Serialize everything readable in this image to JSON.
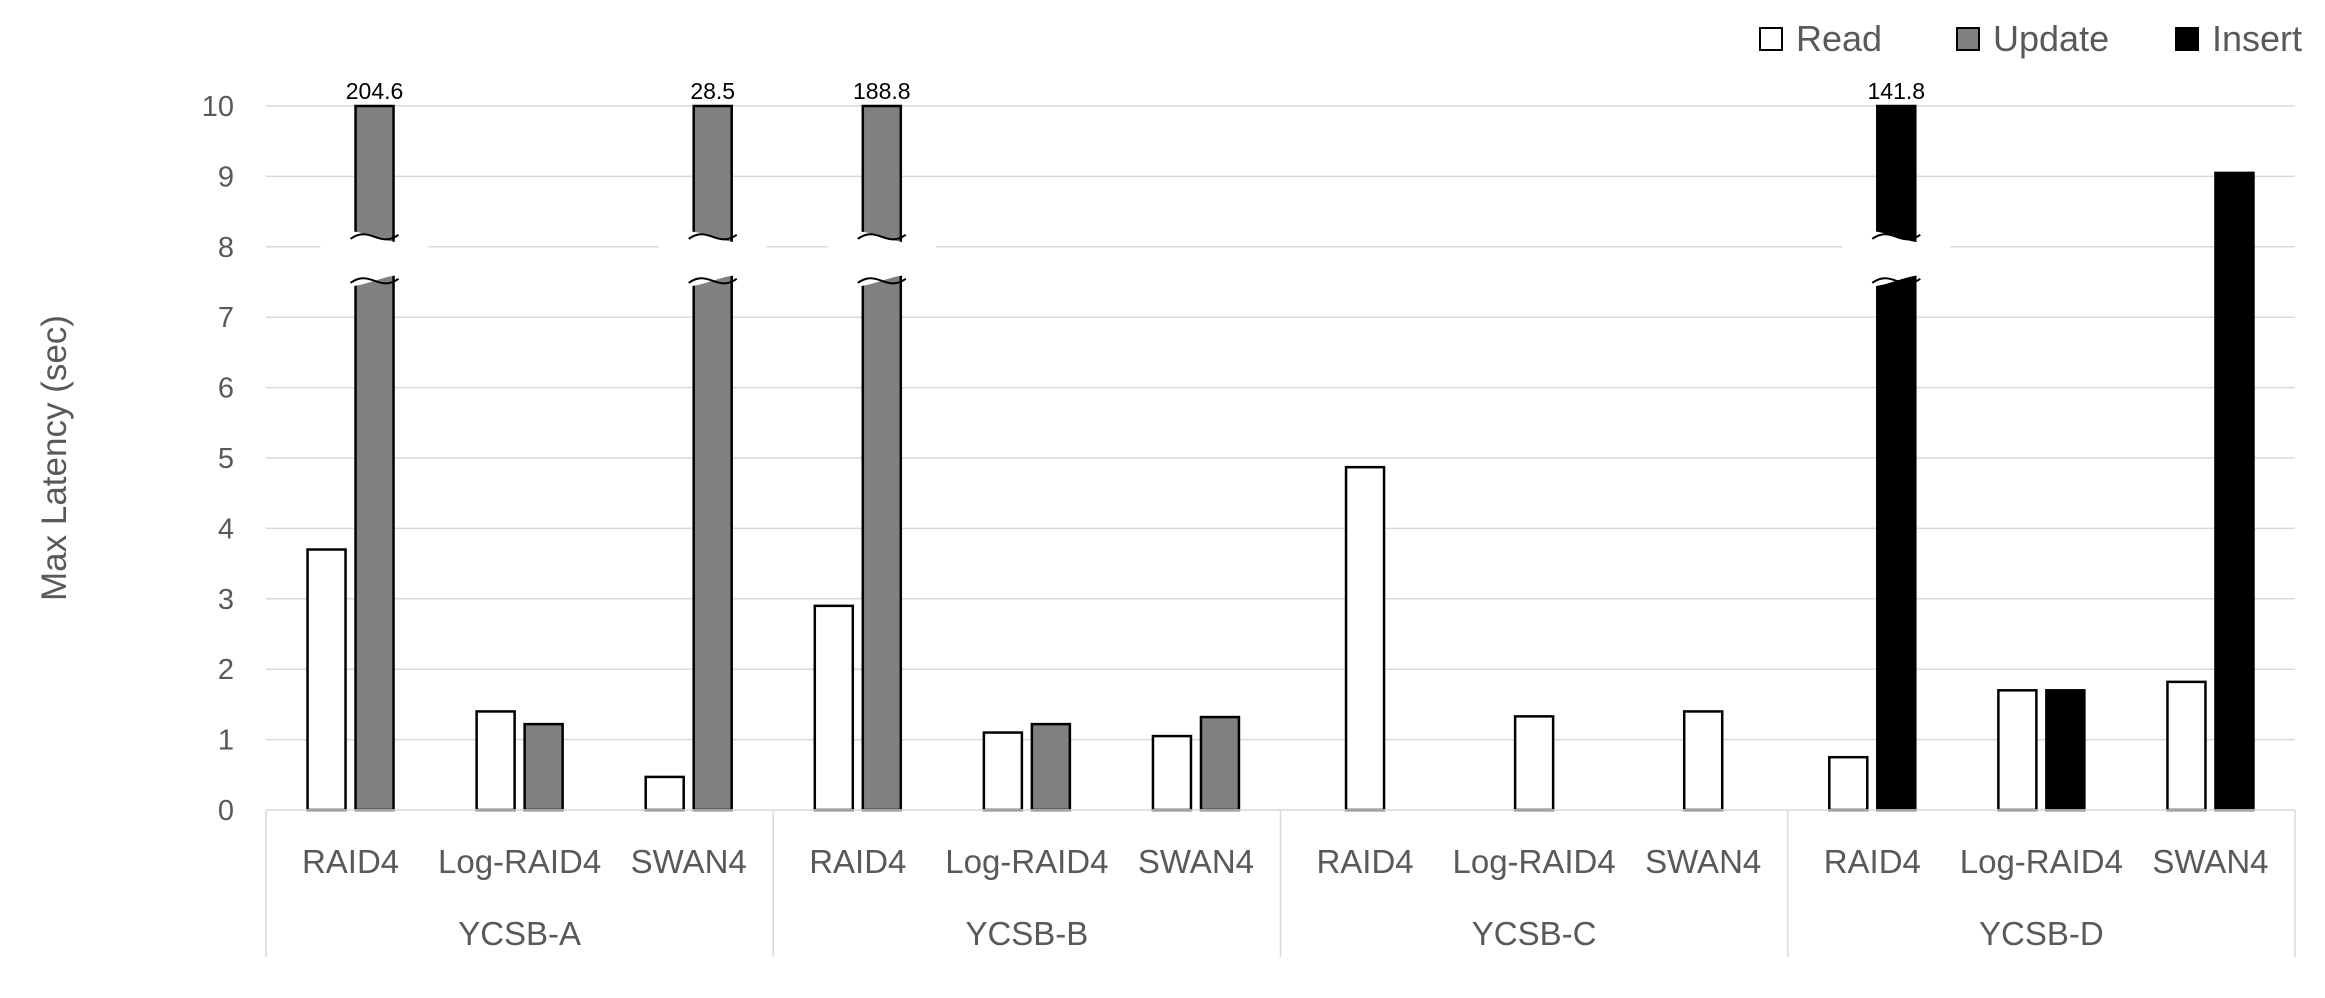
{
  "chart_data": {
    "type": "bar",
    "ylabel": "Max Latency (sec)",
    "ylim": [
      0,
      10
    ],
    "yticks": [
      0,
      1,
      2,
      3,
      4,
      5,
      6,
      7,
      8,
      9,
      10
    ],
    "grid": true,
    "legend_position": "top-right",
    "axis_break": "broken bars (values above 10 shown truncated with a break)",
    "groups": [
      {
        "name": "YCSB-A",
        "subcategories": [
          "RAID4",
          "Log-RAID4",
          "SWAN4"
        ]
      },
      {
        "name": "YCSB-B",
        "subcategories": [
          "RAID4",
          "Log-RAID4",
          "SWAN4"
        ]
      },
      {
        "name": "YCSB-C",
        "subcategories": [
          "RAID4",
          "Log-RAID4",
          "SWAN4"
        ]
      },
      {
        "name": "YCSB-D",
        "subcategories": [
          "RAID4",
          "Log-RAID4",
          "SWAN4"
        ]
      }
    ],
    "series": [
      {
        "name": "Read",
        "color": "#ffffff",
        "values": [
          3.7,
          1.4,
          0.47,
          2.9,
          1.1,
          1.05,
          4.87,
          1.33,
          1.4,
          0.75,
          1.7,
          1.82
        ]
      },
      {
        "name": "Update",
        "color": "#808080",
        "values": [
          204.6,
          1.22,
          28.5,
          188.8,
          1.22,
          1.32,
          null,
          null,
          null,
          null,
          null,
          null
        ]
      },
      {
        "name": "Insert",
        "color": "#000000",
        "values": [
          null,
          null,
          null,
          null,
          null,
          null,
          null,
          null,
          null,
          141.8,
          1.7,
          9.05
        ]
      }
    ],
    "data_labels": [
      {
        "series": "Update",
        "index": 0,
        "text": "204.6"
      },
      {
        "series": "Update",
        "index": 2,
        "text": "28.5"
      },
      {
        "series": "Update",
        "index": 3,
        "text": "188.8"
      },
      {
        "series": "Insert",
        "index": 9,
        "text": "141.8"
      }
    ]
  },
  "colors": {
    "axis": "#d9d9d9",
    "grid": "#d9d9d9",
    "text": "#595959",
    "bar_stroke": "#000000"
  }
}
